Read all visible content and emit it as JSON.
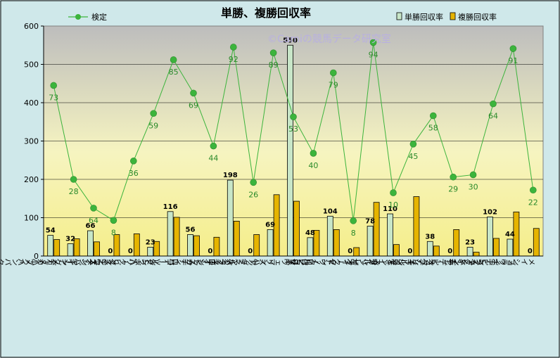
{
  "chart_data": {
    "type": "bar+line",
    "title": "単勝、複勝回収率",
    "watermark": "©Camiの競馬データ研究室",
    "categories": [
      "ディープインパクト",
      "キングカメハメハ",
      "エンパイアメーカー",
      "ダイワメジャー",
      "ハービンジャー",
      "シンボリクリスエス",
      "ハーツクライ",
      "ステイゴールド",
      "ロードカナロア",
      "ルーラーシップ",
      "アグネスタキオン",
      "マンハッタンカフェ",
      "ノヴェリスト",
      "クロフネ",
      "ゼンノロブロイ",
      "ヴィクトワールピサ",
      "ガリレオ",
      "ダンスインザダーク",
      "オルフェーヴル",
      "スペシャルウィーク",
      "ディープブリランテ",
      "フレンチデピュティ",
      "エピファネイア",
      "ブライアンズタイム",
      "メイショウボーラー"
    ],
    "ylim": [
      0,
      600
    ],
    "yticks": [
      0,
      100,
      200,
      300,
      400,
      500,
      600
    ],
    "series": [
      {
        "name": "単勝回収率",
        "type": "bar",
        "color": "#c8e6c8",
        "values": [
          54,
          32,
          66,
          0,
          0,
          23,
          116,
          56,
          0,
          198,
          0,
          69,
          550,
          48,
          104,
          0,
          78,
          110,
          0,
          38,
          0,
          23,
          102,
          44,
          0
        ]
      },
      {
        "name": "複勝回収率",
        "type": "bar",
        "color": "#e6b400",
        "values": [
          43,
          45,
          37,
          56,
          58,
          38,
          101,
          53,
          49,
          91,
          56,
          160,
          143,
          67,
          69,
          22,
          140,
          30,
          155,
          26,
          69,
          10,
          46,
          115,
          72
        ]
      },
      {
        "name": "検定",
        "type": "line",
        "color": "#3cb43c",
        "values": [
          445,
          200,
          125,
          93,
          248,
          372,
          512,
          425,
          287,
          545,
          192,
          530,
          363,
          268,
          478,
          92,
          557,
          165,
          292,
          366,
          206,
          212,
          397,
          541,
          172
        ],
        "labels": [
          73,
          28,
          64,
          8,
          36,
          59,
          85,
          69,
          44,
          92,
          26,
          89,
          53,
          40,
          79,
          8,
          94,
          10,
          45,
          58,
          29,
          30,
          64,
          91,
          22
        ]
      }
    ]
  }
}
